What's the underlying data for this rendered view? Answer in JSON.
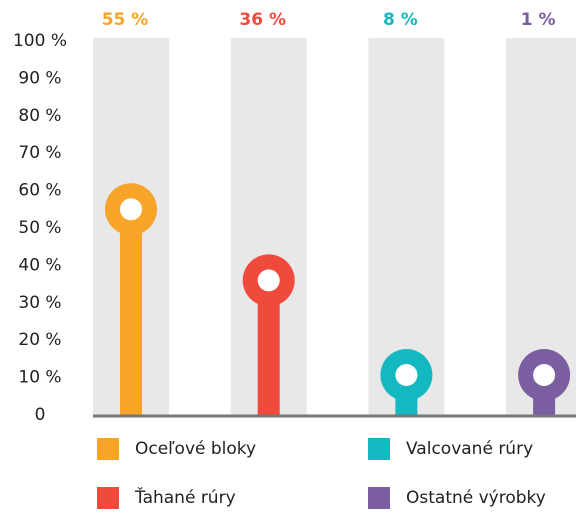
{
  "chart_data": {
    "type": "lollipop",
    "categories": [
      "Oceľové bloky",
      "Ťahané rúry",
      "Valcované rúry",
      "Ostatné výrobky"
    ],
    "values": [
      55,
      36,
      8,
      1
    ],
    "value_labels": [
      "55 %",
      "36 %",
      "8 %",
      "1 %"
    ],
    "colors": [
      "#f7a428",
      "#ef4a3c",
      "#14b8c1",
      "#7b5ea0"
    ],
    "ylim": [
      0,
      100
    ],
    "yticks": [
      0,
      {
        "value": 10,
        "label": "10 %"
      },
      {
        "value": 20,
        "label": "20 %"
      },
      {
        "value": 30,
        "label": "30 %"
      },
      {
        "value": 40,
        "label": "40 %"
      },
      {
        "value": 50,
        "label": "50 %"
      },
      {
        "value": 60,
        "label": "60 %"
      },
      {
        "value": 70,
        "label": "70 %"
      },
      {
        "value": 80,
        "label": "80 %"
      },
      {
        "value": 90,
        "label": "90 %"
      },
      {
        "value": 100,
        "label": "100 %"
      }
    ]
  }
}
